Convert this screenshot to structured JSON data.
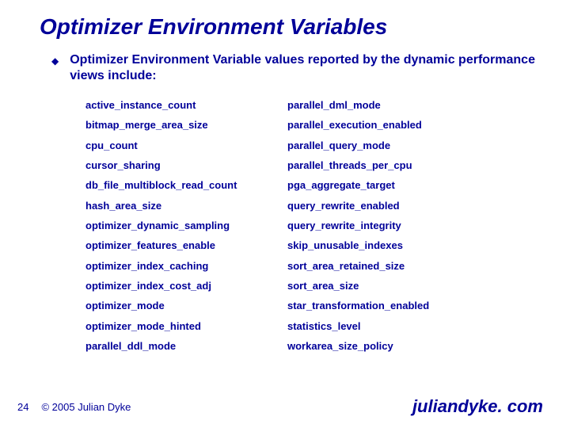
{
  "title": "Optimizer Environment Variables",
  "bullet_char": "◆",
  "intro": "Optimizer Environment Variable values reported by the dynamic performance views include:",
  "vars": {
    "left": [
      "active_instance_count",
      "bitmap_merge_area_size",
      "cpu_count",
      "cursor_sharing",
      "db_file_multiblock_read_count",
      "hash_area_size",
      "optimizer_dynamic_sampling",
      "optimizer_features_enable",
      "optimizer_index_caching",
      "optimizer_index_cost_adj",
      "optimizer_mode",
      "optimizer_mode_hinted",
      "parallel_ddl_mode"
    ],
    "right": [
      "parallel_dml_mode",
      "parallel_execution_enabled",
      "parallel_query_mode",
      "parallel_threads_per_cpu",
      "pga_aggregate_target",
      "query_rewrite_enabled",
      "query_rewrite_integrity",
      "skip_unusable_indexes",
      "sort_area_retained_size",
      "sort_area_size",
      "star_transformation_enabled",
      "statistics_level",
      "workarea_size_policy"
    ]
  },
  "footer": {
    "page": "24",
    "copyright": "© 2005 Julian Dyke",
    "site": "juliandyke. com"
  },
  "colors": {
    "text": "#000099",
    "background": "#ffffff"
  },
  "fonts": {
    "title_size": 28,
    "intro_size": 16,
    "var_size": 13,
    "footer_size": 13,
    "site_size": 22
  }
}
